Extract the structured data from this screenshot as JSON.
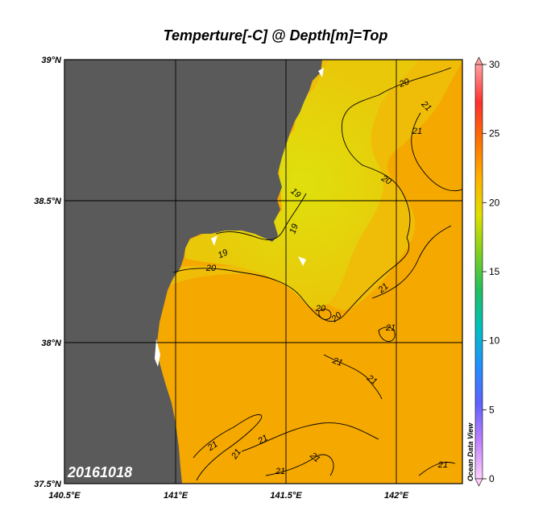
{
  "title": "Temperture[-C] @ Depth[m]=Top",
  "date_stamp": "20161018",
  "watermark": "Ocean Data View",
  "axes": {
    "lon_ticks": [
      "140.5°E",
      "141°E",
      "141.5°E",
      "142°E"
    ],
    "lat_ticks": [
      "39°N",
      "38.5°N",
      "38°N",
      "37.5°N"
    ],
    "lon_range": [
      140.5,
      142.3
    ],
    "lat_range": [
      37.5,
      39.0
    ],
    "grid": true
  },
  "colorbar": {
    "min": 0,
    "max": 30,
    "ticks": [
      "30",
      "25",
      "20",
      "15",
      "10",
      "5",
      "0"
    ],
    "palette": [
      "#ffd0ff",
      "#c080ff",
      "#6060ff",
      "#2090ff",
      "#00c0c0",
      "#20c060",
      "#80d020",
      "#e0e000",
      "#ffb000",
      "#ff7000",
      "#ff3030",
      "#ffa0a0"
    ]
  },
  "colors": {
    "land": "#5a5a5a",
    "warm_sea": "#f5a700",
    "cool_sea": "#d6de10"
  },
  "contour_labels": [
    {
      "text": "19"
    },
    {
      "text": "19"
    },
    {
      "text": "19"
    },
    {
      "text": "20"
    },
    {
      "text": "20"
    },
    {
      "text": "20"
    },
    {
      "text": "20"
    },
    {
      "text": "20"
    },
    {
      "text": "21"
    },
    {
      "text": "21"
    },
    {
      "text": "21"
    },
    {
      "text": "21"
    },
    {
      "text": "21"
    },
    {
      "text": "21"
    },
    {
      "text": "21"
    },
    {
      "text": "21"
    },
    {
      "text": "21"
    },
    {
      "text": "21"
    },
    {
      "text": "21"
    },
    {
      "text": "21"
    }
  ]
}
